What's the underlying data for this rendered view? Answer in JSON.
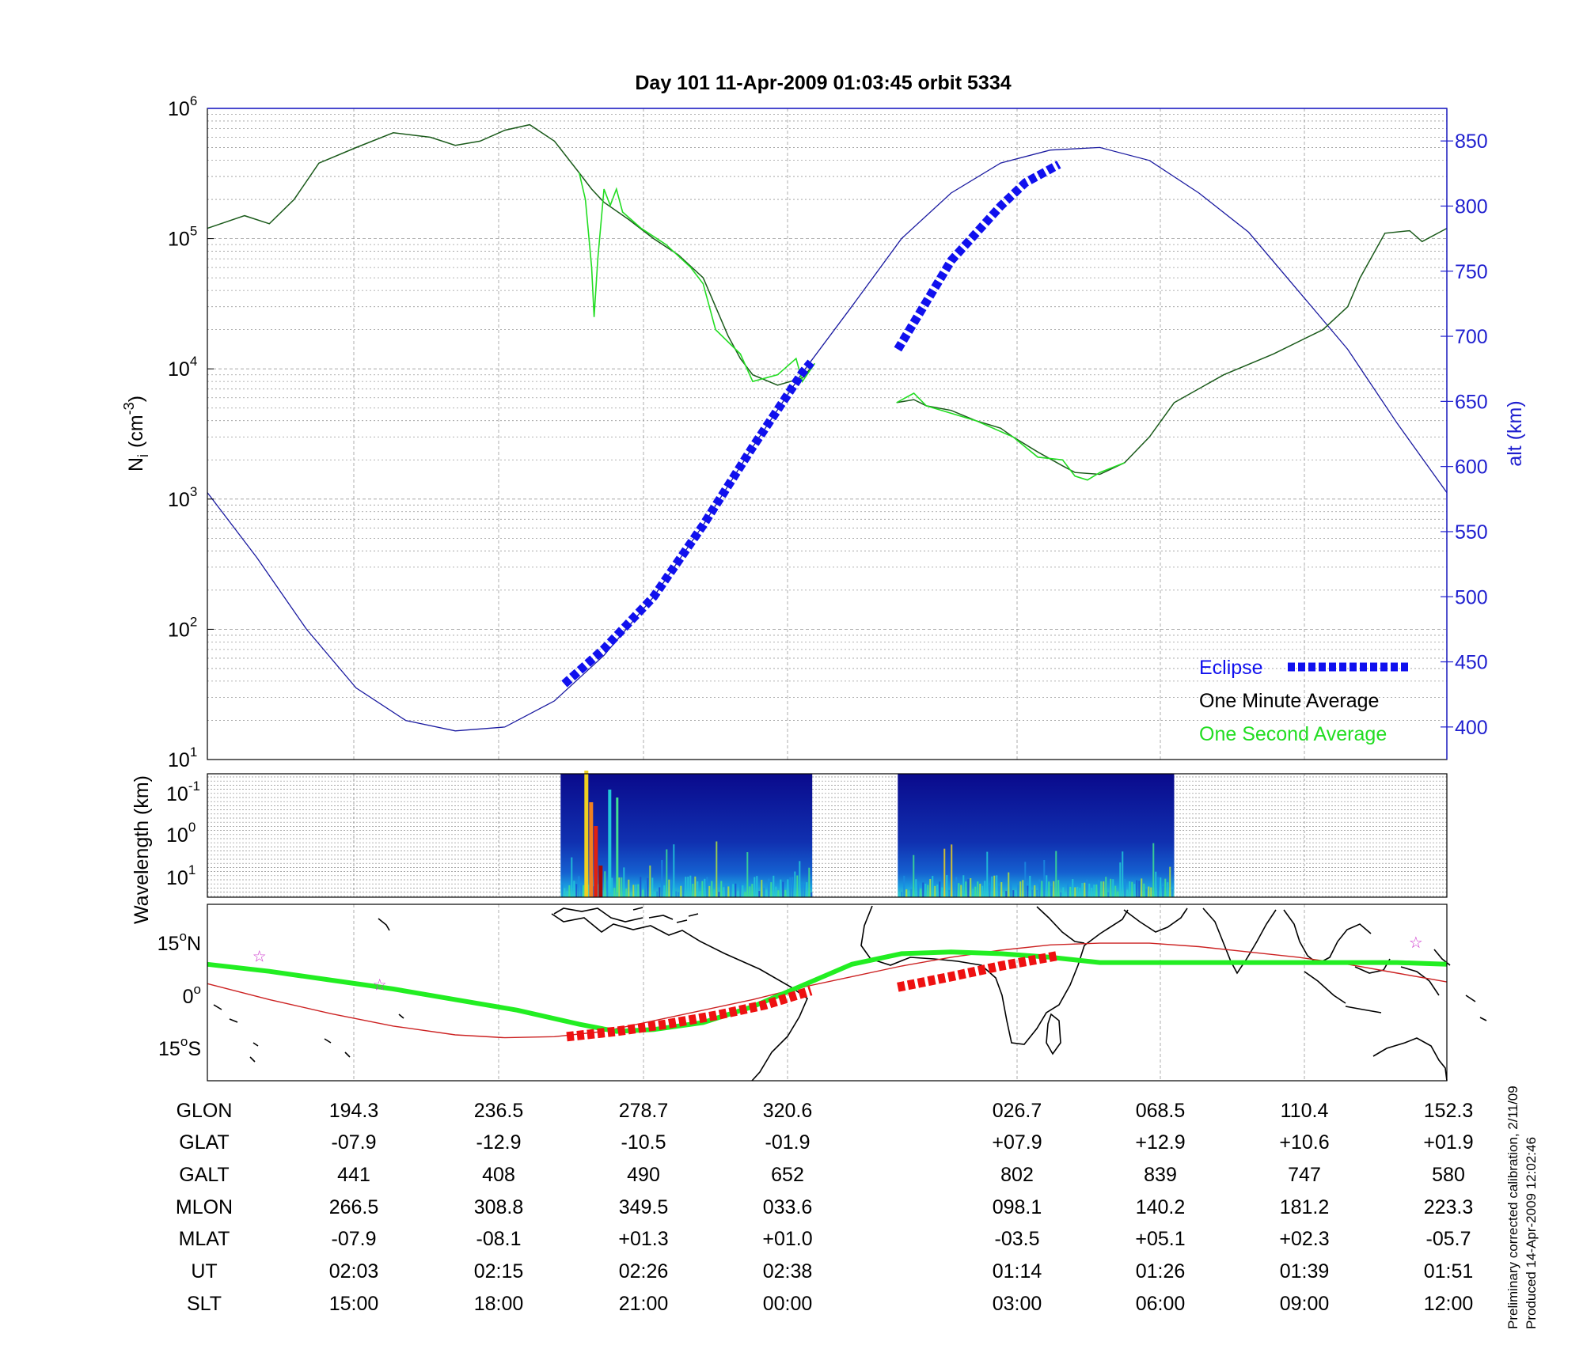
{
  "title": "Day 101  11-Apr-2009 01:03:45   orbit 5334",
  "side_notes": [
    "Preliminary corrected calibration, 2/11/09",
    "Produced 14-Apr-2009 12:02:46"
  ],
  "colors": {
    "axis": "#000000",
    "alt_axis": "#1f1fcf",
    "eclipse": "#1010ee",
    "one_minute": "#1a5a1a",
    "one_second": "#22dd22",
    "altitude_line": "#1a1aa0",
    "track": "#22ee22",
    "dip_line": "#cc2222",
    "eclipse_track": "#ee1111",
    "star": "#cc33cc"
  },
  "chart_data": [
    {
      "id": "density",
      "type": "line",
      "ylabel_main": "N",
      "ylabel_sub": "i",
      "ylabel_unit": "(cm",
      "ylabel_exp": "-3",
      "ylabel_close": ")",
      "y_scale": "log",
      "ylim": [
        10,
        1000000
      ],
      "yticks": [
        {
          "value": 10,
          "base": "10",
          "exp": "1"
        },
        {
          "value": 100,
          "base": "10",
          "exp": "2"
        },
        {
          "value": 1000,
          "base": "10",
          "exp": "3"
        },
        {
          "value": 10000,
          "base": "10",
          "exp": "4"
        },
        {
          "value": 100000,
          "base": "10",
          "exp": "5"
        },
        {
          "value": 1000000,
          "base": "10",
          "exp": "6"
        }
      ],
      "y2label": "alt (km)",
      "y2lim": [
        375,
        875
      ],
      "y2ticks": [
        400,
        450,
        500,
        550,
        600,
        650,
        700,
        750,
        800,
        850
      ],
      "xlim": [
        0,
        1
      ],
      "grid": true,
      "legend": {
        "placement": "lower-right",
        "entries": [
          {
            "label": "Eclipse",
            "series": "eclipse"
          },
          {
            "label": "One Minute Average",
            "series": "one_minute"
          },
          {
            "label": "One Second Average",
            "series": "one_second"
          }
        ]
      },
      "series": [
        {
          "name": "One Minute Average",
          "axis": "left",
          "segments": [
            [
              [
                0.0,
                120000
              ],
              [
                0.03,
                150000
              ],
              [
                0.05,
                130000
              ],
              [
                0.07,
                200000
              ],
              [
                0.09,
                380000
              ],
              [
                0.12,
                500000
              ],
              [
                0.15,
                650000
              ],
              [
                0.18,
                600000
              ],
              [
                0.2,
                520000
              ],
              [
                0.22,
                560000
              ],
              [
                0.24,
                680000
              ],
              [
                0.26,
                750000
              ],
              [
                0.28,
                560000
              ],
              [
                0.3,
                320000
              ],
              [
                0.31,
                240000
              ],
              [
                0.32,
                190000
              ],
              [
                0.34,
                140000
              ],
              [
                0.36,
                100000
              ],
              [
                0.38,
                75000
              ],
              [
                0.4,
                50000
              ],
              [
                0.41,
                30000
              ],
              [
                0.42,
                18000
              ],
              [
                0.43,
                12000
              ],
              [
                0.44,
                9000
              ],
              [
                0.46,
                7500
              ],
              [
                0.48,
                8500
              ],
              [
                0.49,
                11000
              ]
            ],
            [
              [
                0.556,
                5500
              ],
              [
                0.57,
                5800
              ],
              [
                0.58,
                5200
              ],
              [
                0.6,
                4800
              ],
              [
                0.62,
                4000
              ],
              [
                0.64,
                3500
              ],
              [
                0.65,
                3000
              ],
              [
                0.67,
                2300
              ],
              [
                0.69,
                1800
              ],
              [
                0.7,
                1600
              ],
              [
                0.72,
                1550
              ],
              [
                0.74,
                1900
              ],
              [
                0.76,
                3000
              ],
              [
                0.78,
                5500
              ],
              [
                0.82,
                9000
              ],
              [
                0.86,
                13000
              ],
              [
                0.9,
                20000
              ],
              [
                0.92,
                30000
              ],
              [
                0.93,
                50000
              ],
              [
                0.95,
                110000
              ],
              [
                0.97,
                115000
              ],
              [
                0.98,
                95000
              ],
              [
                1.0,
                120000
              ]
            ]
          ]
        },
        {
          "name": "One Second Average",
          "axis": "left",
          "segments": [
            [
              [
                0.3,
                320000
              ],
              [
                0.305,
                200000
              ],
              [
                0.31,
                60000
              ],
              [
                0.312,
                25000
              ],
              [
                0.315,
                70000
              ],
              [
                0.32,
                240000
              ],
              [
                0.325,
                180000
              ],
              [
                0.33,
                240000
              ],
              [
                0.335,
                160000
              ],
              [
                0.35,
                120000
              ],
              [
                0.37,
                90000
              ],
              [
                0.39,
                60000
              ],
              [
                0.4,
                45000
              ],
              [
                0.41,
                20000
              ],
              [
                0.43,
                13000
              ],
              [
                0.44,
                8000
              ],
              [
                0.46,
                9000
              ],
              [
                0.475,
                12000
              ],
              [
                0.48,
                8000
              ],
              [
                0.49,
                11000
              ]
            ],
            [
              [
                0.556,
                5500
              ],
              [
                0.57,
                6500
              ],
              [
                0.58,
                5200
              ],
              [
                0.62,
                4000
              ],
              [
                0.65,
                3000
              ],
              [
                0.67,
                2100
              ],
              [
                0.69,
                2000
              ],
              [
                0.7,
                1500
              ],
              [
                0.71,
                1400
              ],
              [
                0.72,
                1600
              ],
              [
                0.74,
                1900
              ]
            ]
          ]
        },
        {
          "name": "alt",
          "axis": "right",
          "points": [
            [
              0.0,
              580
            ],
            [
              0.04,
              530
            ],
            [
              0.08,
              475
            ],
            [
              0.12,
              430
            ],
            [
              0.16,
              405
            ],
            [
              0.2,
              397
            ],
            [
              0.24,
              400
            ],
            [
              0.28,
              420
            ],
            [
              0.32,
              455
            ],
            [
              0.36,
              500
            ],
            [
              0.4,
              555
            ],
            [
              0.44,
              615
            ],
            [
              0.48,
              672
            ],
            [
              0.52,
              723
            ],
            [
              0.56,
              775
            ],
            [
              0.6,
              810
            ],
            [
              0.64,
              833
            ],
            [
              0.68,
              843
            ],
            [
              0.72,
              845
            ],
            [
              0.76,
              835
            ],
            [
              0.8,
              810
            ],
            [
              0.84,
              780
            ],
            [
              0.88,
              735
            ],
            [
              0.92,
              690
            ],
            [
              0.96,
              633
            ],
            [
              1.0,
              580
            ]
          ]
        },
        {
          "name": "Eclipse",
          "axis": "right",
          "segments": [
            [
              [
                0.288,
                433
              ],
              [
                0.32,
                460
              ],
              [
                0.36,
                500
              ],
              [
                0.4,
                555
              ],
              [
                0.44,
                615
              ],
              [
                0.48,
                672
              ],
              [
                0.487,
                680
              ]
            ],
            [
              [
                0.557,
                690
              ],
              [
                0.6,
                758
              ],
              [
                0.64,
                800
              ],
              [
                0.66,
                818
              ],
              [
                0.687,
                832
              ]
            ]
          ]
        }
      ]
    },
    {
      "id": "spectrogram",
      "type": "heatmap",
      "ylabel": "Wavelength (km)",
      "yticks": [
        {
          "base": "10",
          "exp": "-1"
        },
        {
          "base": "10",
          "exp": "0"
        },
        {
          "base": "10",
          "exp": "1"
        }
      ],
      "blocks": [
        [
          0.285,
          0.488
        ],
        [
          0.557,
          0.78
        ]
      ]
    },
    {
      "id": "map",
      "type": "line",
      "yticks": [
        {
          "deg": "15",
          "ref": "N"
        },
        {
          "deg": "0",
          "ref": ""
        },
        {
          "deg": "15",
          "ref": "S"
        }
      ],
      "ylim": [
        -25,
        25
      ],
      "series": [
        {
          "name": "track",
          "points": [
            [
              0.0,
              8
            ],
            [
              0.05,
              6
            ],
            [
              0.1,
              3.5
            ],
            [
              0.15,
              1
            ],
            [
              0.2,
              -2
            ],
            [
              0.25,
              -5
            ],
            [
              0.3,
              -9
            ],
            [
              0.33,
              -11
            ],
            [
              0.36,
              -10.5
            ],
            [
              0.4,
              -8.5
            ],
            [
              0.44,
              -4
            ],
            [
              0.48,
              2
            ],
            [
              0.52,
              8
            ],
            [
              0.56,
              11
            ],
            [
              0.6,
              11.5
            ],
            [
              0.64,
              11
            ],
            [
              0.68,
              10
            ],
            [
              0.72,
              8.5
            ],
            [
              0.76,
              8.5
            ],
            [
              0.8,
              8.5
            ],
            [
              0.84,
              8.5
            ],
            [
              0.88,
              8.5
            ],
            [
              0.92,
              8.5
            ],
            [
              0.96,
              8.5
            ],
            [
              1.0,
              8
            ]
          ]
        },
        {
          "name": "dip",
          "points": [
            [
              0.0,
              2.5
            ],
            [
              0.05,
              -2
            ],
            [
              0.1,
              -6
            ],
            [
              0.15,
              -9.5
            ],
            [
              0.2,
              -12
            ],
            [
              0.24,
              -12.8
            ],
            [
              0.28,
              -12.5
            ],
            [
              0.32,
              -11
            ],
            [
              0.36,
              -8
            ],
            [
              0.4,
              -5
            ],
            [
              0.44,
              -2
            ],
            [
              0.48,
              1.5
            ],
            [
              0.52,
              4.5
            ],
            [
              0.56,
              7.5
            ],
            [
              0.6,
              10
            ],
            [
              0.64,
              12
            ],
            [
              0.68,
              13.5
            ],
            [
              0.72,
              14
            ],
            [
              0.76,
              14
            ],
            [
              0.8,
              13
            ],
            [
              0.84,
              11.5
            ],
            [
              0.88,
              10
            ],
            [
              0.92,
              8
            ],
            [
              0.96,
              5.5
            ],
            [
              1.0,
              3
            ]
          ]
        },
        {
          "name": "eclipse_track",
          "segments": [
            [
              [
                0.29,
                -12.5
              ],
              [
                0.33,
                -11
              ],
              [
                0.37,
                -9
              ],
              [
                0.41,
                -6.5
              ],
              [
                0.45,
                -3.5
              ],
              [
                0.487,
                0.5
              ]
            ],
            [
              [
                0.557,
                1.5
              ],
              [
                0.6,
                4.5
              ],
              [
                0.64,
                7.5
              ],
              [
                0.687,
                10.5
              ]
            ]
          ]
        }
      ],
      "stars": [
        [
          0.042,
          10.5
        ],
        [
          0.139,
          2.5
        ],
        [
          0.975,
          14.5
        ]
      ]
    }
  ],
  "table": {
    "row_labels": [
      "GLON",
      "GLAT",
      "GALT",
      "MLON",
      "MLAT",
      "UT",
      "SLT"
    ],
    "columns": [
      [
        "194.3",
        "-07.9",
        "441",
        "266.5",
        "-07.9",
        "02:03",
        "15:00"
      ],
      [
        "236.5",
        "-12.9",
        "408",
        "308.8",
        "-08.1",
        "02:15",
        "18:00"
      ],
      [
        "278.7",
        "-10.5",
        "490",
        "349.5",
        "+01.3",
        "02:26",
        "21:00"
      ],
      [
        "320.6",
        "-01.9",
        "652",
        "033.6",
        "+01.0",
        "02:38",
        "00:00"
      ],
      [
        "026.7",
        "+07.9",
        "802",
        "098.1",
        "-03.5",
        "01:14",
        "03:00"
      ],
      [
        "068.5",
        "+12.9",
        "839",
        "140.2",
        "+05.1",
        "01:26",
        "06:00"
      ],
      [
        "110.4",
        "+10.6",
        "747",
        "181.2",
        "+02.3",
        "01:39",
        "09:00"
      ],
      [
        "152.3",
        "+01.9",
        "580",
        "223.3",
        "-05.7",
        "01:51",
        "12:00"
      ]
    ]
  }
}
